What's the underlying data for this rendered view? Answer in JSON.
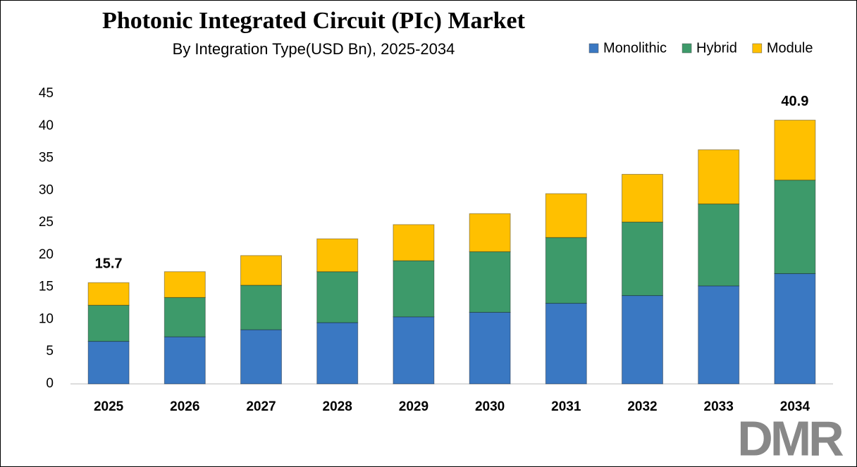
{
  "chart_data": {
    "type": "stacked_bar",
    "title": "Photonic Integrated Circuit (PIc) Market",
    "subtitle": "By Integration Type(USD Bn), 2025-2034",
    "categories": [
      "2025",
      "2026",
      "2027",
      "2028",
      "2029",
      "2030",
      "2031",
      "2032",
      "2033",
      "2034"
    ],
    "series": [
      {
        "name": "Monolithic",
        "color": "#3a78c2",
        "values": [
          6.6,
          7.3,
          8.4,
          9.5,
          10.4,
          11.1,
          12.5,
          13.7,
          15.2,
          17.1
        ]
      },
      {
        "name": "Hybrid",
        "color": "#3d9a6a",
        "values": [
          5.6,
          6.1,
          6.9,
          7.9,
          8.7,
          9.4,
          10.2,
          11.4,
          12.7,
          14.5
        ]
      },
      {
        "name": "Module",
        "color": "#ffc000",
        "values": [
          3.5,
          4.0,
          4.6,
          5.1,
          5.6,
          5.9,
          6.8,
          7.4,
          8.4,
          9.3
        ]
      }
    ],
    "totals": [
      15.7,
      null,
      null,
      null,
      null,
      null,
      null,
      null,
      null,
      40.9
    ],
    "ylim": [
      0,
      45
    ],
    "yticks": [
      0,
      5,
      10,
      15,
      20,
      25,
      30,
      35,
      40,
      45
    ],
    "grid": false,
    "legend": "top-right",
    "logo": "DMR"
  }
}
